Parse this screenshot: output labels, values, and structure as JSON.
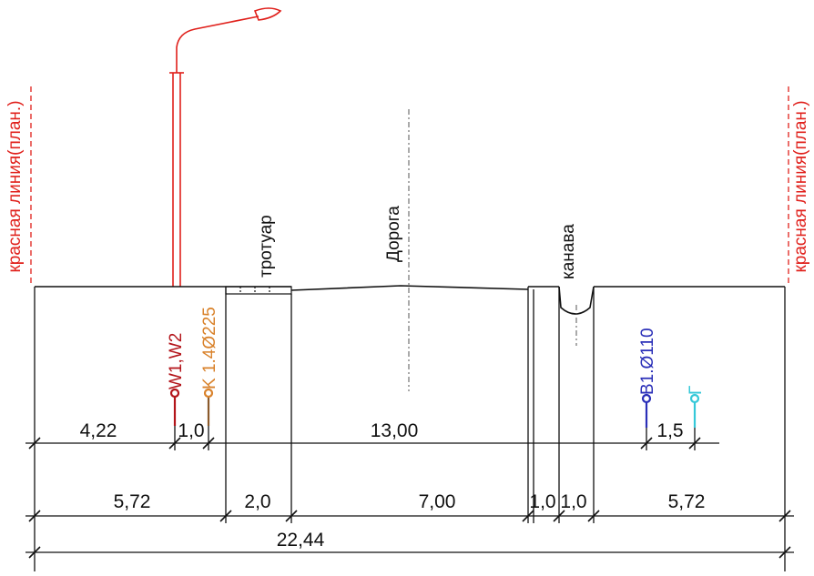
{
  "section": {
    "red_line_left": "красная линия(план.)",
    "red_line_right": "красная линия(план.)",
    "zones": {
      "sidewalk": "тротуар",
      "road": "Дорога",
      "ditch": "канава"
    },
    "utilities": {
      "w1w2": "W1,W2",
      "k1": "K 1.4Ø225",
      "b1": "B1.Ø110",
      "g": "Г"
    },
    "dimensions": {
      "row1": [
        "4,22",
        "1,0",
        "13,00",
        "1,5"
      ],
      "row2": [
        "5,72",
        "2,0",
        "7,00",
        "1,0",
        "1,0",
        "5,72"
      ],
      "row3": [
        "22,44"
      ]
    }
  },
  "colors": {
    "red_line": "#e0201b",
    "w1w2": "#b3141a",
    "k1": "#d9822b",
    "b1": "#2a2fb8",
    "g": "#35c8d8",
    "ink": "#111111"
  }
}
